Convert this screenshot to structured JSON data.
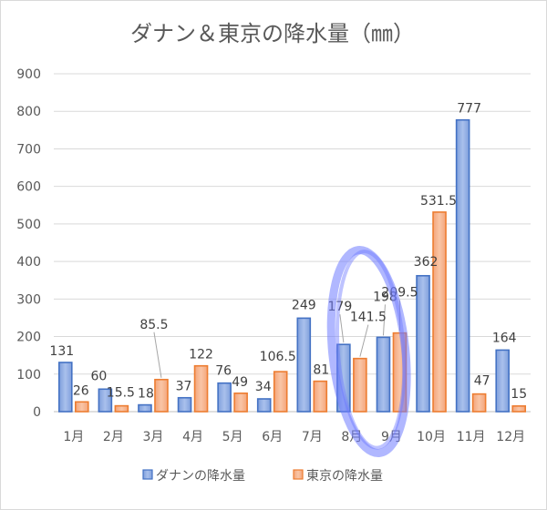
{
  "chart_data": {
    "type": "bar",
    "title": "ダナン＆東京の降水量（㎜）",
    "categories": [
      "1月",
      "2月",
      "3月",
      "4月",
      "5月",
      "6月",
      "7月",
      "8月",
      "9月",
      "10月",
      "11月",
      "12月"
    ],
    "series": [
      {
        "name": "ダナンの降水量",
        "values": [
          131,
          60,
          18,
          37,
          76,
          34,
          249,
          179,
          198,
          362,
          777,
          164
        ],
        "color": "#4472c4"
      },
      {
        "name": "東京の降水量",
        "values": [
          26,
          15.5,
          85.5,
          122,
          49,
          106.5,
          81,
          141.5,
          209.5,
          531.5,
          47,
          15
        ],
        "color": "#ed7d31"
      }
    ],
    "data_labels": {
      "0": [
        "131",
        "60",
        "18",
        "37",
        "76",
        "34",
        "249",
        "179",
        "198",
        "362",
        "777",
        "164"
      ],
      "1": [
        "26",
        "15.5",
        "85.5",
        "122",
        "49",
        "106.5",
        "81",
        "141.5",
        "209.5",
        "531.5",
        "47",
        "15"
      ]
    },
    "y_ticks": [
      "0",
      "100",
      "200",
      "300",
      "400",
      "500",
      "600",
      "700",
      "800",
      "900"
    ],
    "ylim": [
      0,
      900
    ],
    "grid": true,
    "legend_position": "bottom",
    "highlight": {
      "description": "hand-drawn blue oval around 8月 and 9月",
      "color": "#6f7bff"
    }
  }
}
